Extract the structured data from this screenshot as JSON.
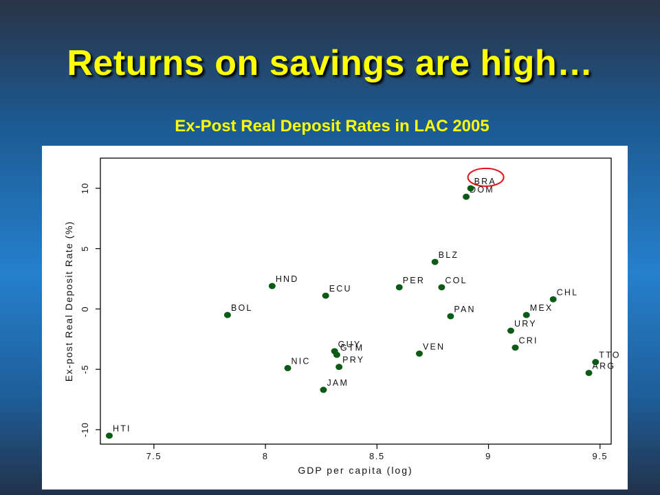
{
  "slide": {
    "title": "Returns on savings are high…",
    "subtitle": "Ex-Post Real Deposit Rates in LAC 2005"
  },
  "colors": {
    "title": "#ffff00",
    "point": "#0b5a16",
    "highlight_circle": "#e0121a",
    "panel": "#ffffff"
  },
  "chart_data": {
    "type": "scatter",
    "title": "",
    "xlabel": "GDP per capita (log)",
    "ylabel": "Ex-post Real Deposit Rate (%)",
    "xlim": [
      7.26,
      9.55
    ],
    "ylim": [
      -11.2,
      12.5
    ],
    "xticks": [
      7.5,
      8,
      8.5,
      9,
      9.5
    ],
    "xtick_labels": [
      "7.5",
      "8",
      "8.5",
      "9",
      "9.5"
    ],
    "yticks": [
      -10,
      -5,
      0,
      5,
      10
    ],
    "ytick_labels": [
      "-10",
      "-5",
      "0",
      "5",
      "10"
    ],
    "grid": false,
    "legend": "none",
    "highlighted_point": "BRA",
    "points": [
      {
        "label": "HTI",
        "x": 7.3,
        "y": -10.5
      },
      {
        "label": "BOL",
        "x": 7.83,
        "y": -0.5
      },
      {
        "label": "HND",
        "x": 8.03,
        "y": 1.9
      },
      {
        "label": "NIC",
        "x": 8.1,
        "y": -4.9
      },
      {
        "label": "ECU",
        "x": 8.27,
        "y": 1.1
      },
      {
        "label": "JAM",
        "x": 8.26,
        "y": -6.7
      },
      {
        "label": "GUY",
        "x": 8.31,
        "y": -3.5
      },
      {
        "label": "GTM",
        "x": 8.32,
        "y": -3.8
      },
      {
        "label": "PRY",
        "x": 8.33,
        "y": -4.8
      },
      {
        "label": "PER",
        "x": 8.6,
        "y": 1.8
      },
      {
        "label": "VEN",
        "x": 8.69,
        "y": -3.7
      },
      {
        "label": "BLZ",
        "x": 8.76,
        "y": 3.9
      },
      {
        "label": "COL",
        "x": 8.79,
        "y": 1.8
      },
      {
        "label": "PAN",
        "x": 8.83,
        "y": -0.6
      },
      {
        "label": "DOM",
        "x": 8.9,
        "y": 9.3
      },
      {
        "label": "BRA",
        "x": 8.92,
        "y": 10.0
      },
      {
        "label": "URY",
        "x": 9.1,
        "y": -1.8
      },
      {
        "label": "CRI",
        "x": 9.12,
        "y": -3.2
      },
      {
        "label": "MEX",
        "x": 9.17,
        "y": -0.5
      },
      {
        "label": "CHL",
        "x": 9.29,
        "y": 0.8
      },
      {
        "label": "ARG",
        "x": 9.45,
        "y": -5.3
      },
      {
        "label": "TTO",
        "x": 9.48,
        "y": -4.4
      }
    ]
  }
}
